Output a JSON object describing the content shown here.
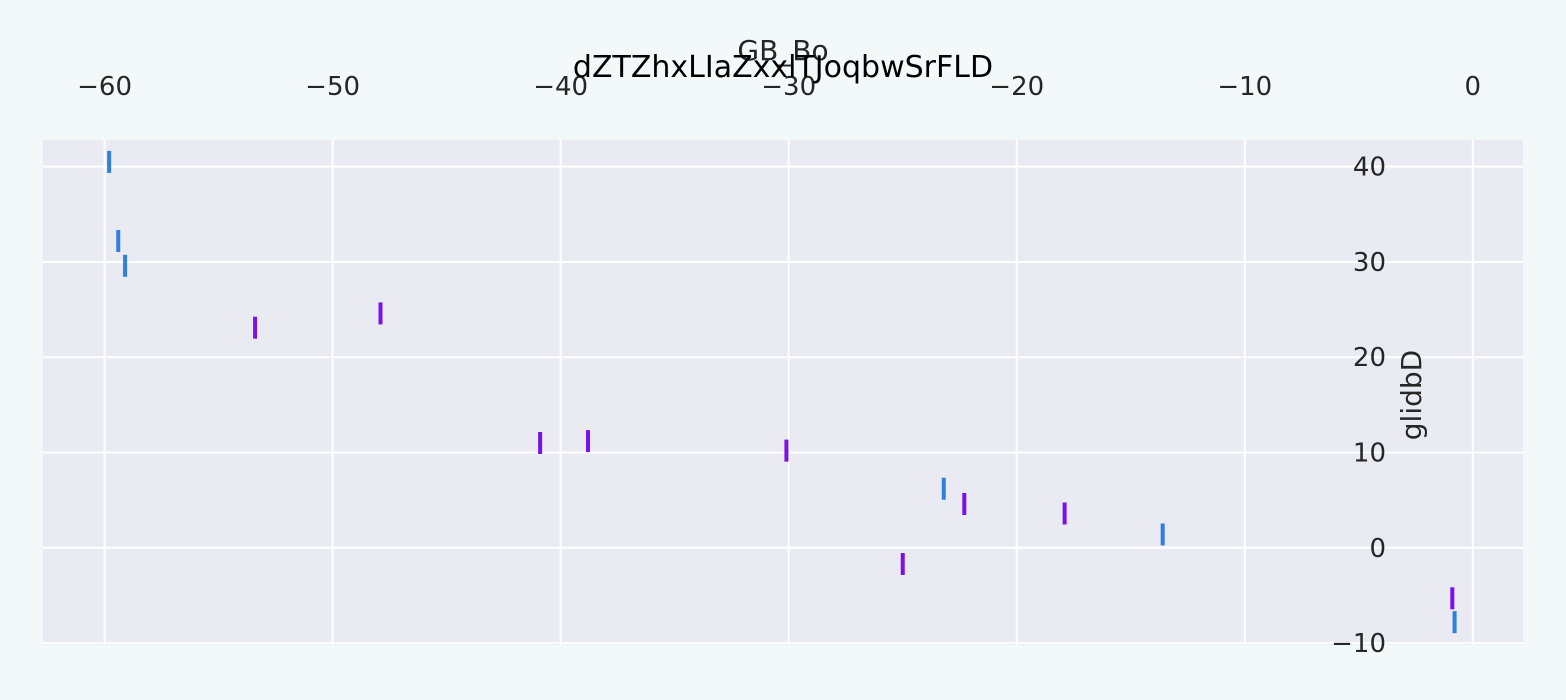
{
  "chart_data": {
    "type": "scatter",
    "marker": "vertical-line",
    "title": "dZTZhxLIaZxxlTJoqbwSrFLD",
    "xlabel": "GB_Bo",
    "ylabel": "glidbD",
    "x_axis_position": "top",
    "y_axis_position": "right",
    "xlim": [
      -62.7,
      2.2
    ],
    "ylim": [
      -10.2,
      42.8
    ],
    "xticks": [
      -60,
      -50,
      -40,
      -30,
      -20,
      -10,
      0
    ],
    "xtick_labels": [
      "−60",
      "−50",
      "−40",
      "−30",
      "−20",
      "−10",
      "0"
    ],
    "yticks": [
      -10,
      0,
      10,
      20,
      30,
      40
    ],
    "ytick_labels": [
      "−10",
      "0",
      "10",
      "20",
      "30",
      "40"
    ],
    "grid": true,
    "background_color": "#f3f8f8",
    "plot_background": "#eaeaf2",
    "grid_color": "#ffffff",
    "series": [
      {
        "color": "#2f7fe0",
        "x": [
          -59.8,
          -59.4,
          -59.1,
          -23.2,
          -13.6,
          -0.8
        ],
        "y": [
          40.5,
          32.2,
          29.6,
          6.2,
          1.4,
          -7.8
        ]
      },
      {
        "color": "#7b10e8",
        "x": [
          -53.4,
          -47.9,
          -40.9,
          -38.8,
          -30.1,
          -25.0,
          -22.3,
          -17.9,
          -0.9
        ],
        "y": [
          23.1,
          24.6,
          11.0,
          11.2,
          10.2,
          -1.7,
          4.6,
          3.6,
          -5.3
        ]
      }
    ]
  }
}
